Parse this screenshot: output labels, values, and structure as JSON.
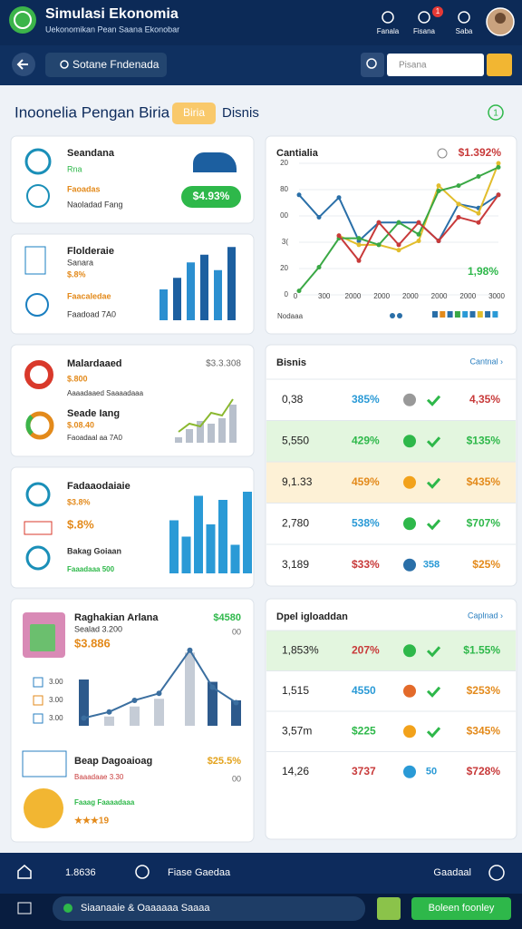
{
  "header": {
    "title": "Simulasi Ekonomia",
    "subtitle": "Uekonomikan Pean Saana Ekonobar",
    "nav": [
      "Fanala",
      "Fisana",
      "Saba"
    ],
    "badge": "1"
  },
  "search": {
    "query": "Sotane Fndenada",
    "input": "Pisana"
  },
  "section": {
    "title": "Inoonelia Pengan Biria",
    "tab_active": "Biria",
    "tab": "Disnis",
    "counter": "1"
  },
  "cards": [
    {
      "title": "Seandana",
      "sub": "Rna",
      "label": "Faoadas",
      "note": "Naoladad Fang",
      "badge": "$4.93%"
    },
    {
      "title": "Flolderaie",
      "sub": "Sanara",
      "value": "$.8%",
      "label": "Faacaledae",
      "note": "Faadoad 7A0",
      "bars": [
        40,
        55,
        75,
        85,
        65,
        95
      ]
    },
    {
      "title": "Malardaaed",
      "amount": "$3.3.308",
      "value": "$.800",
      "label": "Aaaadaaed Saaaadaaa",
      "title2": "Seade Iang",
      "value2": "$.08.40",
      "note": "Faoadaal aa 7A0",
      "bars": [
        10,
        25,
        40,
        35,
        45,
        70
      ],
      "line": [
        20,
        35,
        30,
        55,
        50,
        80
      ]
    },
    {
      "title": "Fadaaodaiaie",
      "value": "$3.8%",
      "value2": "$.8%",
      "label": "Bakag Goiaan",
      "note": "Faaadaaa 500",
      "bars": [
        65,
        45,
        95,
        60,
        90,
        35,
        100
      ]
    },
    {
      "title": "Raghakian Arlana",
      "amount": "$4580",
      "sub": "Sealad 3.200",
      "sub_right": "00",
      "value": "$3.886",
      "legend": [
        "3.00",
        "3.00",
        "3.00"
      ],
      "bars": [
        60,
        12,
        25,
        35,
        95,
        57,
        33
      ],
      "line": [
        10,
        18,
        33,
        42,
        98,
        50,
        30
      ],
      "title2": "Beap Dagoaioag",
      "amount2": "$25.5%",
      "sub2": "Baaadaae 3.30",
      "sub2_right": "00",
      "label": "Faaag Faaaadaaa",
      "rating": "★★★19"
    }
  ],
  "line_chart": {
    "title": "Cantialia",
    "value": "$1.392%",
    "note": "1,98%",
    "caption": "Nodaaa",
    "y_labels": [
      "20",
      "80",
      "00",
      "3(",
      "20",
      "0"
    ],
    "x_labels": [
      "0",
      "300",
      "2000",
      "2000",
      "2000",
      "2000",
      "2000",
      "3000"
    ],
    "ylim": [
      0,
      100
    ],
    "series": [
      {
        "color": "#2a6fa8",
        "values": [
          76,
          59,
          74,
          41,
          55,
          55,
          55,
          41,
          69,
          66,
          76
        ]
      },
      {
        "color": "#e2bd2c",
        "values": [
          null,
          null,
          45,
          38,
          38,
          34,
          41,
          83,
          69,
          62,
          100
        ]
      },
      {
        "color": "#3aa845",
        "values": [
          3,
          21,
          43,
          43,
          38,
          55,
          46,
          79,
          83,
          90,
          97
        ]
      },
      {
        "color": "#c83a3a",
        "values": [
          null,
          null,
          45,
          26,
          55,
          38,
          55,
          41,
          59,
          55,
          76
        ]
      }
    ]
  },
  "tables": [
    {
      "title": "Bisnis",
      "link": "Cantnal ›",
      "rows": [
        {
          "cells": [
            "0,38",
            "385%",
            "4,35%"
          ]
        },
        {
          "cells": [
            "5,550",
            "429%",
            "$135%"
          ],
          "tone": "green"
        },
        {
          "cells": [
            "9,1.33",
            "459%",
            "$435%"
          ],
          "tone": "yellow"
        },
        {
          "cells": [
            "2,780",
            "538%",
            "$707%"
          ]
        },
        {
          "cells": [
            "3,189",
            "$33%",
            "358",
            "$25%"
          ]
        }
      ]
    },
    {
      "title": "Dpel igloaddan",
      "link": "Caplnad ›",
      "rows": [
        {
          "cells": [
            "1,853%",
            "207%",
            "$1.55%"
          ],
          "tone": "green"
        },
        {
          "cells": [
            "1,515",
            "4550",
            "$253%"
          ]
        },
        {
          "cells": [
            "3,57m",
            "$225",
            "$345%"
          ]
        },
        {
          "cells": [
            "14,26",
            "3737",
            "50",
            "$728%"
          ]
        }
      ]
    }
  ],
  "bottom": {
    "nav": [
      "1.8636",
      "Fiase Gaedaa",
      "Gaadaal"
    ],
    "status": "Siaanaaie & Oaaaaaa Saaaa",
    "button": "Boleen foonley"
  }
}
